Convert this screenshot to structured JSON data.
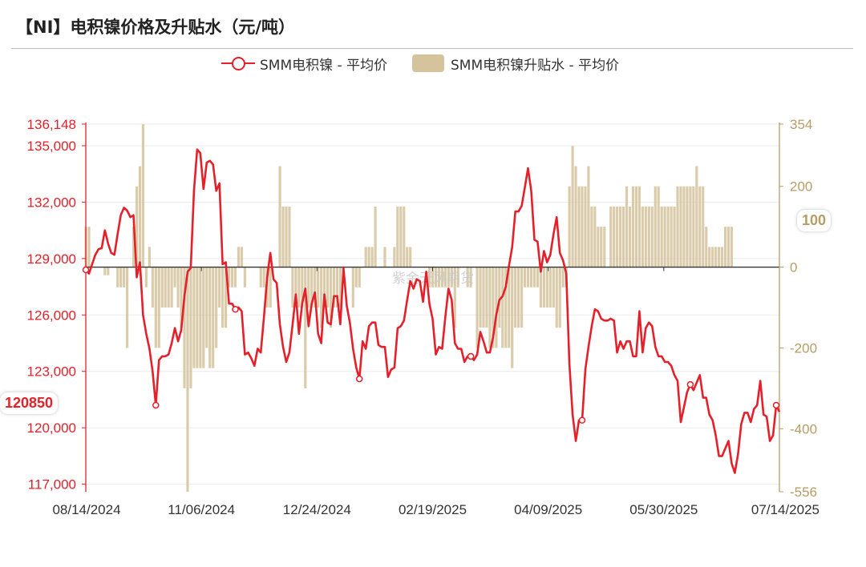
{
  "title": "【NI】电积镍价格及升贴水（元/吨）",
  "legend": {
    "line_label": "SMM电积镍 - 平均价",
    "bar_label": "SMM电积镍升贴水 - 平均价"
  },
  "watermark": "紫金天风期货",
  "latest_price_tag": "120850",
  "latest_premium_tag": "100",
  "colors": {
    "line": "#e4202a",
    "bar": "#d4c39c",
    "right_axis": "#b69d67",
    "grid": "#ebebeb"
  },
  "chart_data": {
    "type": "line",
    "x_tick_labels": [
      "08/14/2024",
      "11/06/2024",
      "12/24/2024",
      "02/19/2025",
      "04/09/2025",
      "05/30/2025",
      "07/14/2025"
    ],
    "left_axis": {
      "ticks": [
        117000,
        120000,
        123000,
        126000,
        129000,
        132000,
        135000,
        136148
      ],
      "tick_labels": [
        "117,000",
        "120,000",
        "123,000",
        "126,000",
        "129,000",
        "132,000",
        "135,000",
        "136,148"
      ],
      "range": [
        116600,
        136148
      ]
    },
    "right_axis": {
      "ticks": [
        -556,
        -400,
        -200,
        0,
        200,
        354
      ],
      "tick_labels": [
        "-556",
        "-400",
        "-200",
        "0",
        "200",
        "354"
      ],
      "range": [
        -556,
        354
      ]
    },
    "series": [
      {
        "name": "SMM电积镍 - 平均价",
        "type": "line",
        "axis": "left",
        "values": [
          128400,
          128200,
          128700,
          129200,
          129500,
          129550,
          130500,
          129800,
          129300,
          129200,
          130300,
          131300,
          131700,
          131550,
          131200,
          131300,
          128000,
          128800,
          126000,
          125000,
          124200,
          123000,
          121200,
          123600,
          123800,
          123800,
          123900,
          124500,
          125300,
          124600,
          125200,
          127000,
          128300,
          128500,
          132600,
          134800,
          134600,
          132700,
          134100,
          134200,
          134000,
          132600,
          133000,
          128700,
          128800,
          126600,
          126600,
          126300,
          126400,
          126200,
          123900,
          124000,
          123700,
          123300,
          124200,
          124000,
          125900,
          128000,
          129300,
          127900,
          127700,
          125500,
          124300,
          123500,
          124000,
          125500,
          127100,
          125000,
          126600,
          127400,
          125400,
          126600,
          127200,
          125000,
          124500,
          127100,
          125600,
          125500,
          127000,
          127000,
          125500,
          128500,
          126500,
          125600,
          124200,
          123200,
          122600,
          124600,
          124200,
          125400,
          125600,
          125600,
          124400,
          124300,
          124300,
          122700,
          123100,
          123200,
          125300,
          125400,
          125700,
          126800,
          127800,
          127400,
          127900,
          127800,
          126700,
          128300,
          126600,
          125800,
          123900,
          124300,
          124200,
          125900,
          127400,
          126800,
          124500,
          124200,
          124200,
          123500,
          123800,
          123800,
          123600,
          123900,
          125100,
          124600,
          124000,
          124000,
          124800,
          126000,
          126800,
          127000,
          127500,
          128600,
          129600,
          131500,
          131500,
          131800,
          132800,
          133800,
          132600,
          130000,
          129900,
          128300,
          129400,
          128800,
          129200,
          130300,
          131200,
          129300,
          128900,
          128200,
          123400,
          120700,
          119300,
          120400,
          120400,
          123100,
          124300,
          125400,
          126300,
          126200,
          125800,
          125700,
          125700,
          125800,
          125700,
          124000,
          124600,
          124200,
          124600,
          124600,
          123800,
          123800,
          126200,
          124000,
          125300,
          125600,
          125400,
          124300,
          123800,
          123800,
          123500,
          123500,
          123300,
          122800,
          122500,
          120300,
          121100,
          121900,
          122300,
          122000,
          122400,
          122800,
          121600,
          121600,
          120700,
          120400,
          119600,
          118500,
          118500,
          118900,
          119300,
          118100,
          117600,
          118600,
          120200,
          120800,
          120800,
          120300,
          121000,
          121200,
          122500,
          120700,
          120600,
          119300,
          119600,
          121200,
          120850
        ]
      },
      {
        "name": "SMM电积镍升贴水 - 平均价",
        "type": "bar",
        "axis": "right",
        "values": [
          100,
          100,
          0,
          0,
          0,
          0,
          -20,
          -20,
          0,
          0,
          -50,
          -50,
          -50,
          -200,
          0,
          100,
          200,
          250,
          354,
          -50,
          50,
          -100,
          -200,
          -200,
          -100,
          -100,
          -100,
          -100,
          -50,
          -100,
          -150,
          -300,
          -556,
          -300,
          -250,
          -250,
          -250,
          -250,
          -200,
          -250,
          -250,
          -200,
          -100,
          -150,
          -150,
          -50,
          -50,
          -50,
          50,
          50,
          -50,
          0,
          0,
          0,
          0,
          -50,
          -50,
          -100,
          -100,
          0,
          0,
          250,
          150,
          150,
          150,
          -100,
          -100,
          -100,
          -100,
          -300,
          -100,
          -100,
          -100,
          -100,
          -150,
          -100,
          -100,
          -150,
          -100,
          -100,
          -100,
          0,
          0,
          0,
          -100,
          -50,
          -50,
          0,
          50,
          50,
          50,
          150,
          0,
          0,
          50,
          0,
          0,
          50,
          150,
          150,
          150,
          50,
          50,
          0,
          0,
          0,
          0,
          0,
          -50,
          -50,
          -50,
          -50,
          -50,
          -50,
          -50,
          -50,
          -150,
          -50,
          0,
          0,
          -50,
          -50,
          0,
          -200,
          -150,
          -150,
          -150,
          -200,
          -200,
          -200,
          -150,
          -200,
          -200,
          -200,
          -250,
          -150,
          -150,
          -150,
          -50,
          -50,
          -50,
          -50,
          -50,
          -100,
          -100,
          -100,
          -100,
          -100,
          -150,
          -150,
          -50,
          -50,
          200,
          300,
          250,
          200,
          200,
          200,
          250,
          150,
          150,
          100,
          100,
          100,
          0,
          150,
          150,
          150,
          150,
          150,
          200,
          150,
          200,
          200,
          200,
          150,
          150,
          150,
          150,
          200,
          200,
          150,
          150,
          150,
          150,
          150,
          200,
          200,
          200,
          200,
          200,
          200,
          250,
          200,
          200,
          100,
          50,
          50,
          50,
          50,
          50,
          100,
          100,
          100
        ]
      }
    ]
  }
}
